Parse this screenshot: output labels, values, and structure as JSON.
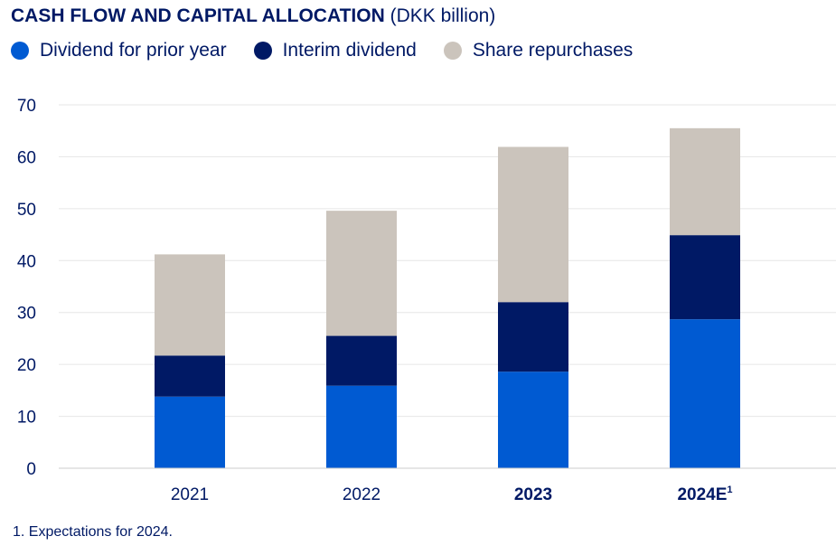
{
  "header": {
    "title": "CASH FLOW AND CAPITAL ALLOCATION",
    "unit": "(DKK billion)"
  },
  "footnote": "1. Expectations for 2024.",
  "colors": {
    "dividend_prior": "#005ad2",
    "interim": "#001965",
    "repurchases": "#cbc4bc",
    "text": "#001965",
    "grid": "#e6e6e6"
  },
  "chart_data": {
    "type": "bar",
    "stacked": true,
    "title": "CASH FLOW AND CAPITAL ALLOCATION (DKK billion)",
    "xlabel": "",
    "ylabel": "",
    "ylim": [
      0,
      70
    ],
    "yticks": [
      0,
      10,
      20,
      30,
      40,
      50,
      60,
      70
    ],
    "grid": true,
    "legend_position": "top",
    "categories": [
      {
        "label": "2021",
        "bold": false,
        "sup": ""
      },
      {
        "label": "2022",
        "bold": false,
        "sup": ""
      },
      {
        "label": "2023",
        "bold": true,
        "sup": ""
      },
      {
        "label": "2024E",
        "bold": true,
        "sup": "1"
      }
    ],
    "series": [
      {
        "name": "Dividend for prior year",
        "color": "#005ad2",
        "values": [
          13.8,
          15.9,
          18.6,
          28.7
        ]
      },
      {
        "name": "Interim dividend",
        "color": "#001965",
        "values": [
          7.9,
          9.6,
          13.4,
          16.2
        ]
      },
      {
        "name": "Share repurchases",
        "color": "#cbc4bc",
        "values": [
          19.5,
          24.1,
          29.9,
          20.6
        ]
      }
    ]
  }
}
